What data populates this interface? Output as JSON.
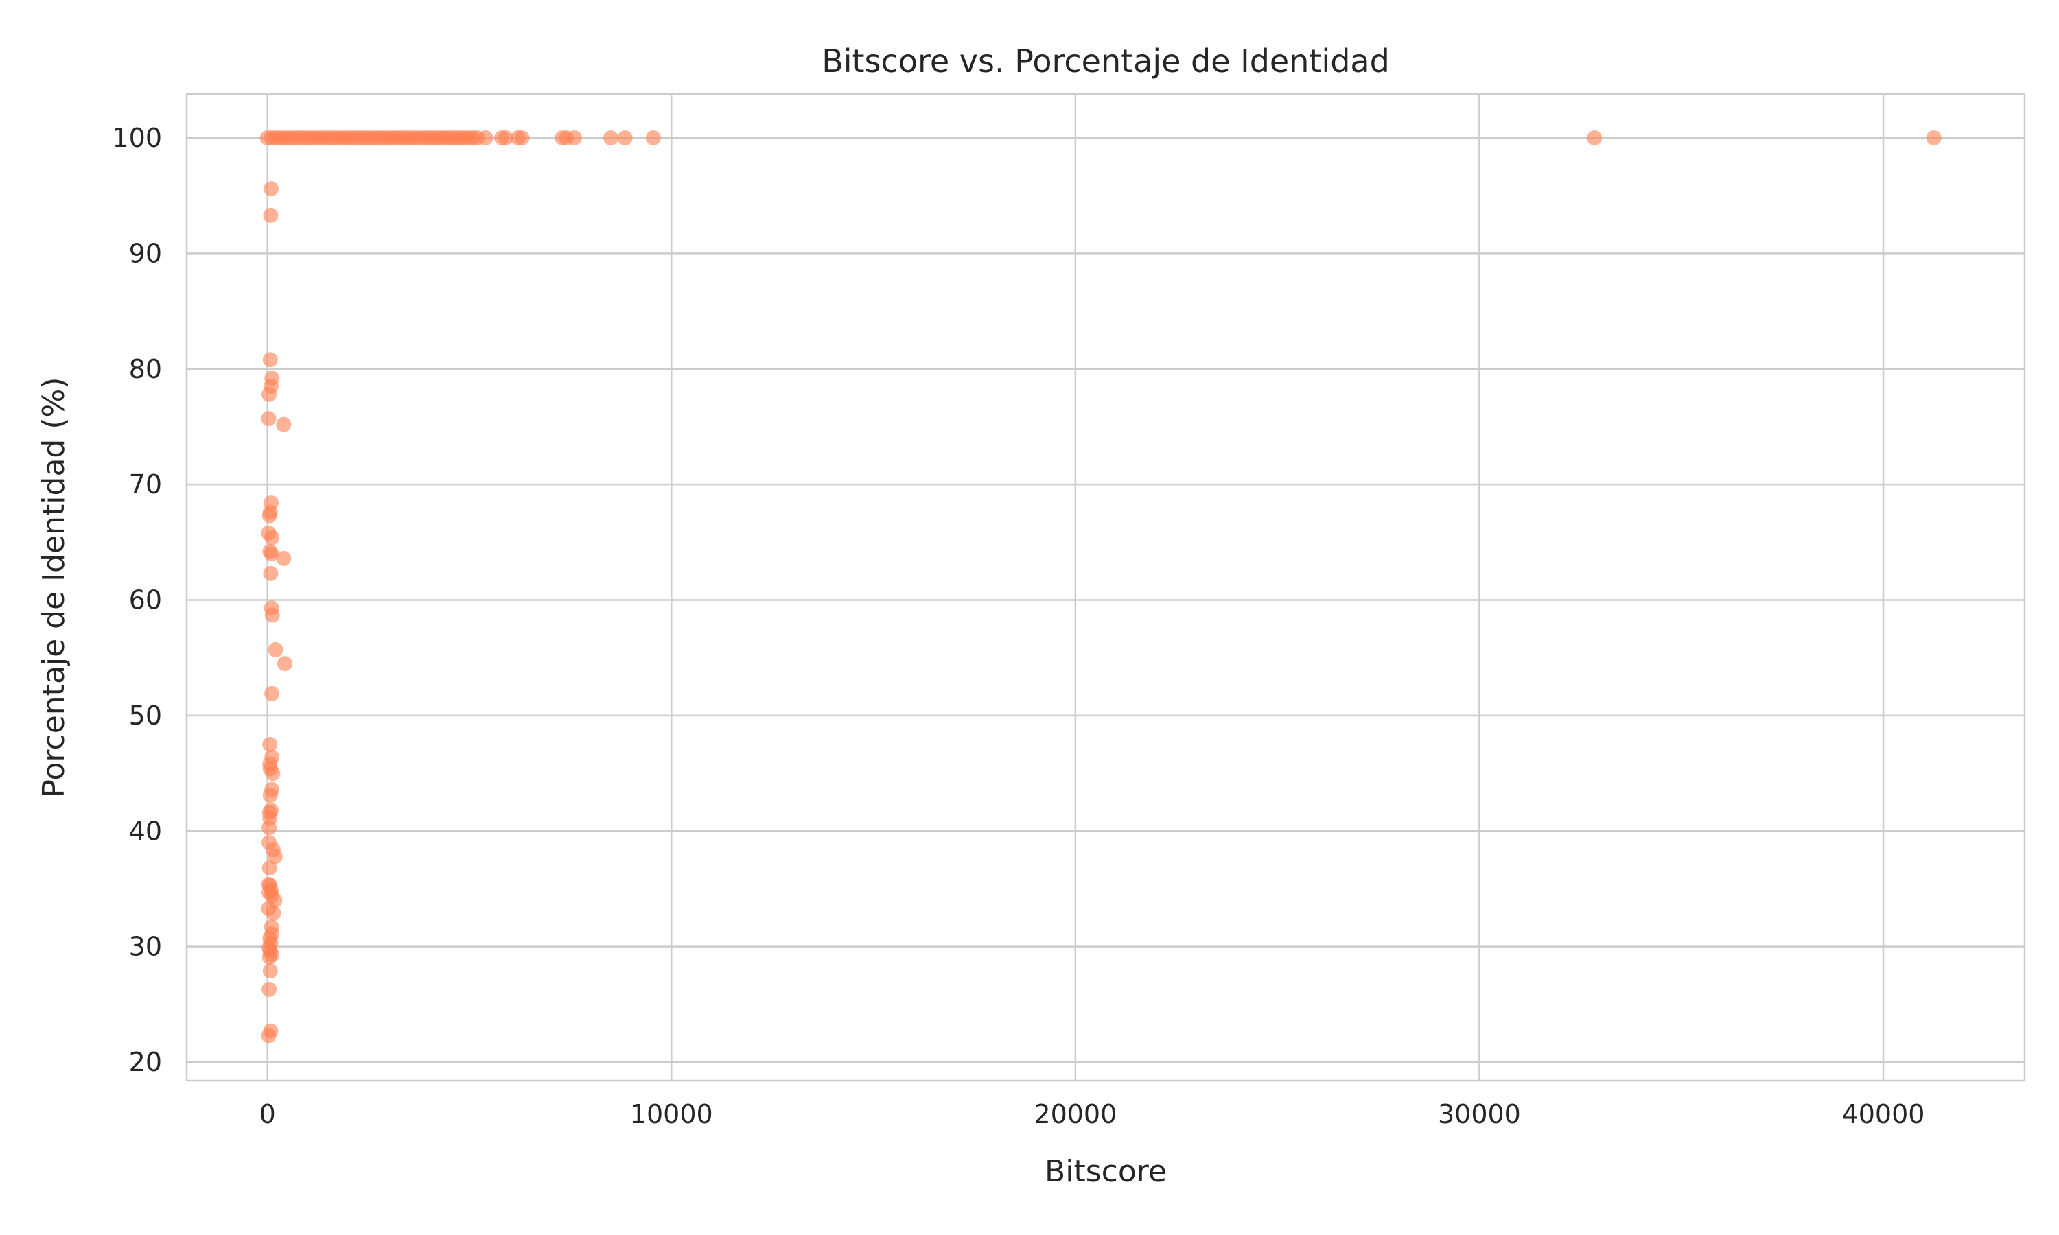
{
  "chart_data": {
    "type": "scatter",
    "title": "Bitscore vs. Porcentaje de Identidad",
    "xlabel": "Bitscore",
    "ylabel": "Porcentaje de Identidad (%)",
    "xlim": [
      -2000,
      43500
    ],
    "ylim": [
      18.4,
      103.8
    ],
    "xticks": [
      0,
      10000,
      20000,
      30000,
      40000
    ],
    "xtick_labels": [
      "0",
      "10000",
      "20000",
      "30000",
      "40000"
    ],
    "yticks": [
      20,
      30,
      40,
      50,
      60,
      70,
      80,
      90,
      100
    ],
    "ytick_labels": [
      "20",
      "30",
      "40",
      "50",
      "60",
      "70",
      "80",
      "90",
      "100"
    ],
    "grid": true,
    "marker_color": "#FF7F50",
    "marker_alpha": 0.6,
    "points": [
      {
        "x": 0,
        "y": 100
      },
      {
        "x": 100,
        "y": 100
      },
      {
        "x": 200,
        "y": 100
      },
      {
        "x": 300,
        "y": 100
      },
      {
        "x": 400,
        "y": 100
      },
      {
        "x": 500,
        "y": 100
      },
      {
        "x": 600,
        "y": 100
      },
      {
        "x": 700,
        "y": 100
      },
      {
        "x": 800,
        "y": 100
      },
      {
        "x": 900,
        "y": 100
      },
      {
        "x": 1000,
        "y": 100
      },
      {
        "x": 1100,
        "y": 100
      },
      {
        "x": 1200,
        "y": 100
      },
      {
        "x": 1300,
        "y": 100
      },
      {
        "x": 1400,
        "y": 100
      },
      {
        "x": 1500,
        "y": 100
      },
      {
        "x": 1600,
        "y": 100
      },
      {
        "x": 1700,
        "y": 100
      },
      {
        "x": 1800,
        "y": 100
      },
      {
        "x": 1900,
        "y": 100
      },
      {
        "x": 2000,
        "y": 100
      },
      {
        "x": 2100,
        "y": 100
      },
      {
        "x": 2200,
        "y": 100
      },
      {
        "x": 2300,
        "y": 100
      },
      {
        "x": 2400,
        "y": 100
      },
      {
        "x": 2500,
        "y": 100
      },
      {
        "x": 2600,
        "y": 100
      },
      {
        "x": 2700,
        "y": 100
      },
      {
        "x": 2800,
        "y": 100
      },
      {
        "x": 2900,
        "y": 100
      },
      {
        "x": 3000,
        "y": 100
      },
      {
        "x": 3100,
        "y": 100
      },
      {
        "x": 3200,
        "y": 100
      },
      {
        "x": 3300,
        "y": 100
      },
      {
        "x": 3400,
        "y": 100
      },
      {
        "x": 3500,
        "y": 100
      },
      {
        "x": 3600,
        "y": 100
      },
      {
        "x": 3700,
        "y": 100
      },
      {
        "x": 3800,
        "y": 100
      },
      {
        "x": 3900,
        "y": 100
      },
      {
        "x": 4000,
        "y": 100
      },
      {
        "x": 4100,
        "y": 100
      },
      {
        "x": 4200,
        "y": 100
      },
      {
        "x": 4300,
        "y": 100
      },
      {
        "x": 4400,
        "y": 100
      },
      {
        "x": 4500,
        "y": 100
      },
      {
        "x": 4600,
        "y": 100
      },
      {
        "x": 4700,
        "y": 100
      },
      {
        "x": 4800,
        "y": 100
      },
      {
        "x": 4900,
        "y": 100
      },
      {
        "x": 5000,
        "y": 100
      },
      {
        "x": 5100,
        "y": 100
      },
      {
        "x": 5200,
        "y": 100
      },
      {
        "x": 5400,
        "y": 100
      },
      {
        "x": 5800,
        "y": 100
      },
      {
        "x": 5900,
        "y": 100
      },
      {
        "x": 6200,
        "y": 100
      },
      {
        "x": 6300,
        "y": 100
      },
      {
        "x": 7300,
        "y": 100
      },
      {
        "x": 7400,
        "y": 100
      },
      {
        "x": 7600,
        "y": 100
      },
      {
        "x": 8500,
        "y": 100
      },
      {
        "x": 8850,
        "y": 100
      },
      {
        "x": 9550,
        "y": 100
      },
      {
        "x": 32850,
        "y": 100
      },
      {
        "x": 41250,
        "y": 100
      },
      {
        "x": 90,
        "y": 95.6
      },
      {
        "x": 80,
        "y": 93.3
      },
      {
        "x": 70,
        "y": 80.8
      },
      {
        "x": 110,
        "y": 79.2
      },
      {
        "x": 90,
        "y": 78.5
      },
      {
        "x": 40,
        "y": 77.8
      },
      {
        "x": 30,
        "y": 75.7
      },
      {
        "x": 400,
        "y": 75.2
      },
      {
        "x": 90,
        "y": 68.4
      },
      {
        "x": 70,
        "y": 67.6
      },
      {
        "x": 50,
        "y": 67.3
      },
      {
        "x": 30,
        "y": 65.8
      },
      {
        "x": 110,
        "y": 65.4
      },
      {
        "x": 60,
        "y": 64.2
      },
      {
        "x": 100,
        "y": 64.0
      },
      {
        "x": 400,
        "y": 63.6
      },
      {
        "x": 80,
        "y": 62.3
      },
      {
        "x": 100,
        "y": 59.3
      },
      {
        "x": 120,
        "y": 58.7
      },
      {
        "x": 200,
        "y": 55.7
      },
      {
        "x": 430,
        "y": 54.5
      },
      {
        "x": 110,
        "y": 51.9
      },
      {
        "x": 60,
        "y": 47.5
      },
      {
        "x": 110,
        "y": 46.4
      },
      {
        "x": 60,
        "y": 45.8
      },
      {
        "x": 70,
        "y": 45.4
      },
      {
        "x": 130,
        "y": 45.0
      },
      {
        "x": 110,
        "y": 43.6
      },
      {
        "x": 70,
        "y": 43.1
      },
      {
        "x": 90,
        "y": 41.8
      },
      {
        "x": 50,
        "y": 41.6
      },
      {
        "x": 60,
        "y": 41.1
      },
      {
        "x": 40,
        "y": 40.3
      },
      {
        "x": 40,
        "y": 39.0
      },
      {
        "x": 140,
        "y": 38.4
      },
      {
        "x": 190,
        "y": 37.8
      },
      {
        "x": 50,
        "y": 36.8
      },
      {
        "x": 30,
        "y": 35.4
      },
      {
        "x": 60,
        "y": 35.3
      },
      {
        "x": 90,
        "y": 34.9
      },
      {
        "x": 40,
        "y": 34.7
      },
      {
        "x": 110,
        "y": 34.4
      },
      {
        "x": 180,
        "y": 34.0
      },
      {
        "x": 30,
        "y": 33.3
      },
      {
        "x": 150,
        "y": 32.9
      },
      {
        "x": 100,
        "y": 31.7
      },
      {
        "x": 110,
        "y": 31.1
      },
      {
        "x": 60,
        "y": 30.7
      },
      {
        "x": 80,
        "y": 30.3
      },
      {
        "x": 40,
        "y": 29.9
      },
      {
        "x": 70,
        "y": 29.6
      },
      {
        "x": 110,
        "y": 29.3
      },
      {
        "x": 50,
        "y": 29.1
      },
      {
        "x": 70,
        "y": 27.9
      },
      {
        "x": 40,
        "y": 26.3
      },
      {
        "x": 80,
        "y": 22.7
      },
      {
        "x": 30,
        "y": 22.3
      }
    ]
  }
}
